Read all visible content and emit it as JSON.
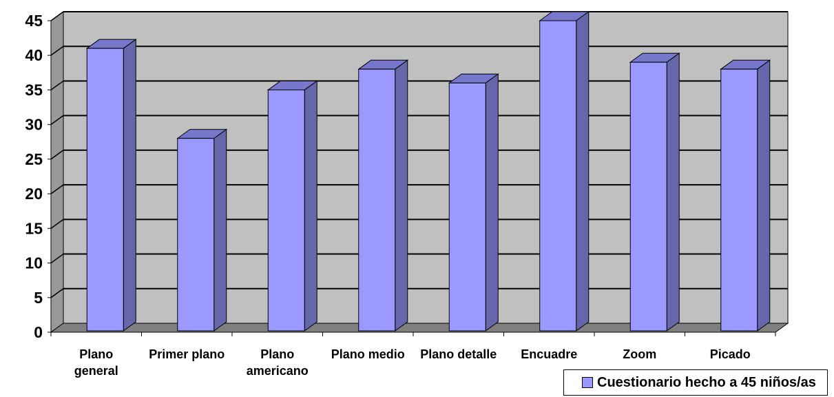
{
  "chart_data": {
    "type": "bar",
    "title": "",
    "xlabel": "",
    "ylabel": "",
    "categories": [
      [
        "Plano",
        "general"
      ],
      [
        "Primer plano"
      ],
      [
        "Plano",
        "americano"
      ],
      [
        "Plano medio"
      ],
      [
        "Plano detalle"
      ],
      [
        "Encuadre"
      ],
      [
        "Zoom"
      ],
      [
        "Picado"
      ]
    ],
    "series": [
      {
        "name": "Cuestionario hecho a 45 niños/as",
        "values": [
          41,
          28,
          35,
          38,
          36,
          45,
          39,
          38
        ]
      }
    ],
    "ylim": [
      0,
      45
    ],
    "yticks": [
      0,
      5,
      10,
      15,
      20,
      25,
      30,
      35,
      40,
      45
    ],
    "grid": true,
    "legend_position": "bottom-right",
    "style": "3d-column"
  },
  "colors": {
    "bar_front": "#9999ff",
    "bar_side": "#6666aa",
    "bar_top": "#7777cc",
    "plot_back": "#c0c0c0",
    "plot_floor": "#808080",
    "plot_wall": "#999999",
    "gridline": "#000000"
  }
}
